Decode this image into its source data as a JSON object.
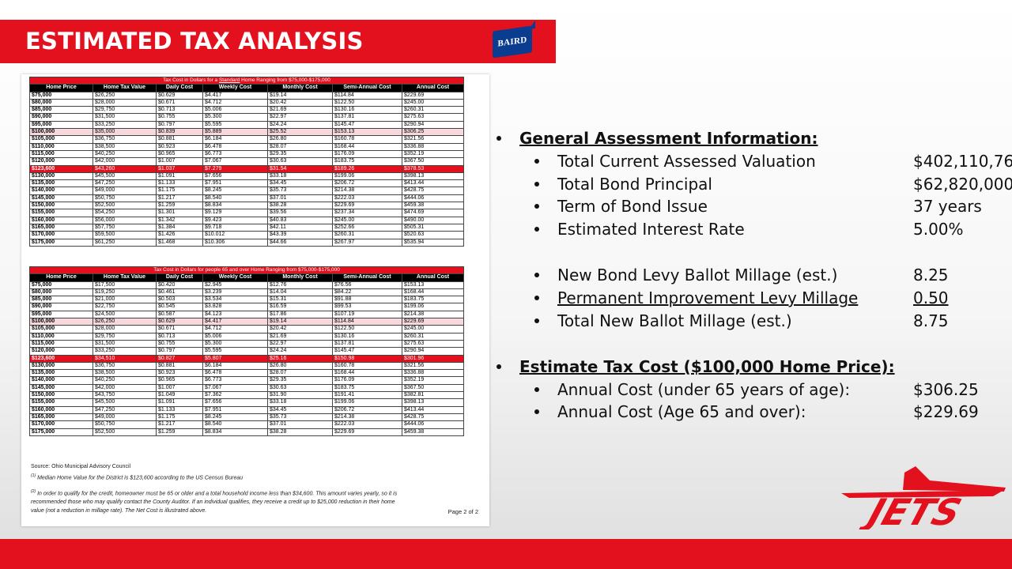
{
  "slide": {
    "title": "ESTIMATED TAX ANALYSIS",
    "logo_text": "BAIRD",
    "brand_color": "#e3101e",
    "logo_color": "#0a3d8f",
    "jets_logo_text": "JETS"
  },
  "document": {
    "columns": [
      "Home Price",
      "Home Tax Value",
      "Daily Cost",
      "Weekly Cost",
      "Monthly Cost",
      "Semi-Annual Cost",
      "Annual Cost"
    ],
    "table1": {
      "caption_pre": "Tax Cost in Dollars for a ",
      "caption_underlined": "Standard",
      "caption_post": " Home Ranging from $75,000-$175,000",
      "rows": [
        [
          "$75,000",
          "$26,250",
          "$0.629",
          "$4.417",
          "$19.14",
          "$114.84",
          "$229.69"
        ],
        [
          "$80,000",
          "$28,000",
          "$0.671",
          "$4.712",
          "$20.42",
          "$122.50",
          "$245.00"
        ],
        [
          "$85,000",
          "$29,750",
          "$0.713",
          "$5.006",
          "$21.69",
          "$130.16",
          "$260.31"
        ],
        [
          "$90,000",
          "$31,500",
          "$0.755",
          "$5.300",
          "$22.97",
          "$137.81",
          "$275.63"
        ],
        [
          "$95,000",
          "$33,250",
          "$0.797",
          "$5.595",
          "$24.24",
          "$145.47",
          "$290.94"
        ],
        [
          "$100,000",
          "$35,000",
          "$0.839",
          "$5.889",
          "$25.52",
          "$153.13",
          "$306.25"
        ],
        [
          "$105,000",
          "$36,750",
          "$0.881",
          "$6.184",
          "$26.80",
          "$160.78",
          "$321.56"
        ],
        [
          "$110,000",
          "$38,500",
          "$0.923",
          "$6.478",
          "$28.07",
          "$168.44",
          "$336.88"
        ],
        [
          "$115,000",
          "$40,250",
          "$0.965",
          "$6.773",
          "$29.35",
          "$176.09",
          "$352.19"
        ],
        [
          "$120,000",
          "$42,000",
          "$1.007",
          "$7.067",
          "$30.63",
          "$183.75",
          "$367.50"
        ],
        [
          "$123,600",
          "$43,260",
          "$1.037",
          "$7.279",
          "$31.54",
          "$189.26",
          "$378.53"
        ],
        [
          "$130,000",
          "$45,500",
          "$1.091",
          "$7.656",
          "$33.18",
          "$199.06",
          "$398.13"
        ],
        [
          "$135,000",
          "$47,250",
          "$1.133",
          "$7.951",
          "$34.45",
          "$206.72",
          "$413.44"
        ],
        [
          "$140,000",
          "$49,000",
          "$1.175",
          "$8.245",
          "$35.73",
          "$214.38",
          "$428.75"
        ],
        [
          "$145,000",
          "$50,750",
          "$1.217",
          "$8.540",
          "$37.01",
          "$222.03",
          "$444.06"
        ],
        [
          "$150,000",
          "$52,500",
          "$1.259",
          "$8.834",
          "$38.28",
          "$229.69",
          "$459.38"
        ],
        [
          "$155,000",
          "$54,250",
          "$1.301",
          "$9.129",
          "$39.56",
          "$237.34",
          "$474.69"
        ],
        [
          "$160,000",
          "$56,000",
          "$1.342",
          "$9.423",
          "$40.83",
          "$245.00",
          "$490.00"
        ],
        [
          "$165,000",
          "$57,750",
          "$1.384",
          "$9.718",
          "$42.11",
          "$252.66",
          "$505.31"
        ],
        [
          "$170,000",
          "$59,500",
          "$1.426",
          "$10.012",
          "$43.39",
          "$260.31",
          "$520.63"
        ],
        [
          "$175,000",
          "$61,250",
          "$1.468",
          "$10.306",
          "$44.66",
          "$267.97",
          "$535.94"
        ]
      ]
    },
    "table2": {
      "caption": "Tax Cost in Dollars for people 65 and over Home Ranging from $75,000-$175,000",
      "rows": [
        [
          "$75,000",
          "$17,500",
          "$0.420",
          "$2.945",
          "$12.76",
          "$76.56",
          "$153.13"
        ],
        [
          "$80,000",
          "$19,250",
          "$0.461",
          "$3.239",
          "$14.04",
          "$84.22",
          "$168.44"
        ],
        [
          "$85,000",
          "$21,000",
          "$0.503",
          "$3.534",
          "$15.31",
          "$91.88",
          "$183.75"
        ],
        [
          "$90,000",
          "$22,750",
          "$0.545",
          "$3.828",
          "$16.59",
          "$99.53",
          "$199.06"
        ],
        [
          "$95,000",
          "$24,500",
          "$0.587",
          "$4.123",
          "$17.86",
          "$107.19",
          "$214.38"
        ],
        [
          "$100,000",
          "$26,250",
          "$0.629",
          "$4.417",
          "$19.14",
          "$114.84",
          "$229.69"
        ],
        [
          "$105,000",
          "$28,000",
          "$0.671",
          "$4.712",
          "$20.42",
          "$122.50",
          "$245.00"
        ],
        [
          "$110,000",
          "$29,750",
          "$0.713",
          "$5.006",
          "$21.69",
          "$130.16",
          "$260.31"
        ],
        [
          "$115,000",
          "$31,500",
          "$0.755",
          "$5.300",
          "$22.97",
          "$137.81",
          "$275.63"
        ],
        [
          "$120,000",
          "$33,250",
          "$0.797",
          "$5.595",
          "$24.24",
          "$145.47",
          "$290.94"
        ],
        [
          "$123,600",
          "$34,510",
          "$0.827",
          "$5.807",
          "$25.16",
          "$150.98",
          "$301.96"
        ],
        [
          "$130,000",
          "$36,750",
          "$0.881",
          "$6.184",
          "$26.80",
          "$160.78",
          "$321.56"
        ],
        [
          "$135,000",
          "$38,500",
          "$0.923",
          "$6.478",
          "$28.07",
          "$168.44",
          "$336.88"
        ],
        [
          "$140,000",
          "$40,250",
          "$0.965",
          "$6.773",
          "$29.35",
          "$176.09",
          "$352.19"
        ],
        [
          "$145,000",
          "$42,000",
          "$1.007",
          "$7.067",
          "$30.63",
          "$183.75",
          "$367.50"
        ],
        [
          "$150,000",
          "$43,750",
          "$1.049",
          "$7.362",
          "$31.90",
          "$191.41",
          "$382.81"
        ],
        [
          "$155,000",
          "$45,500",
          "$1.091",
          "$7.656",
          "$33.18",
          "$199.06",
          "$398.13"
        ],
        [
          "$160,000",
          "$47,250",
          "$1.133",
          "$7.951",
          "$34.45",
          "$206.72",
          "$413.44"
        ],
        [
          "$165,000",
          "$49,000",
          "$1.175",
          "$8.245",
          "$35.73",
          "$214.38",
          "$428.75"
        ],
        [
          "$170,000",
          "$50,750",
          "$1.217",
          "$8.540",
          "$37.01",
          "$222.03",
          "$444.06"
        ],
        [
          "$175,000",
          "$52,500",
          "$1.259",
          "$8.834",
          "$38.28",
          "$229.69",
          "$459.38"
        ]
      ]
    },
    "source": "Source:  Ohio Municipal Advisory Council",
    "note1_marker": "(1)",
    "note1": "Median Home Value for the District is $123,600 according to the US Census Bureau",
    "note2_marker": "(2)",
    "note2_line1": "In order to qualify for the credit, homeowner must be 65 or older and a total household income less than $34,600.  This amount varies yearly, so it is",
    "note2_line2": "recommended those who may qualify contact the County Auditor.   If an individual qualifies, they receive a credit up to $25,000 reduction in their home",
    "note2_line3": "value (not a reduction in millage rate). The Net Cost is illustrated above.",
    "page_label": "Page 2 of 2"
  },
  "info": {
    "general_header": "General Assessment Information:",
    "items": [
      {
        "label": "Total Current Assessed Valuation",
        "value": "$402,110,760"
      },
      {
        "label": "Total Bond Principal",
        "value": "$62,820,000"
      },
      {
        "label": "Term of Bond Issue",
        "value": "37 years"
      },
      {
        "label": "Estimated Interest Rate",
        "value": "5.00%"
      }
    ],
    "millage": [
      {
        "label": "New Bond Levy Ballot Millage (est.)",
        "value": "8.25"
      },
      {
        "label": "Permanent Improvement Levy Millage",
        "value": "0.50"
      },
      {
        "label": "Total New Ballot Millage (est.)",
        "value": "8.75"
      }
    ],
    "estimate_header": "Estimate Tax Cost ($100,000 Home Price):",
    "costs": [
      {
        "label": "Annual Cost (under 65 years of age):",
        "value": "$306.25"
      },
      {
        "label": "Annual Cost (Age 65 and over):",
        "value": "$229.69"
      }
    ]
  }
}
